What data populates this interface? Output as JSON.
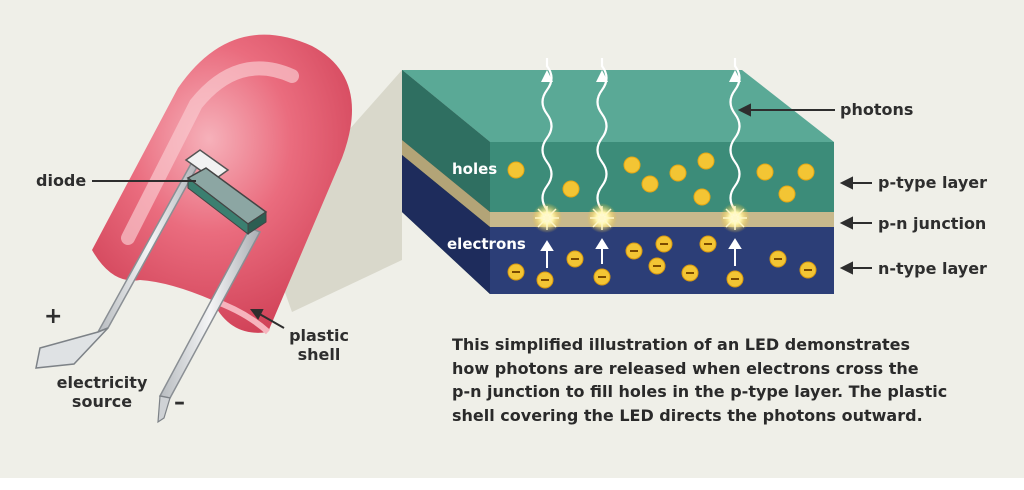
{
  "labels": {
    "diode": "diode",
    "photons": "photons",
    "holes": "holes",
    "electrons": "electrons",
    "p_type_layer": "p-type layer",
    "p_n_junction": "p-n junction",
    "n_type_layer": "n-type layer",
    "plastic_shell": [
      "plastic",
      "shell"
    ],
    "electricity_source": [
      "electricity",
      "source"
    ],
    "plus_sign": "+",
    "minus_sign": "–"
  },
  "caption": [
    "This simplified illustration of an LED demonstrates",
    "how photons are released when electrons cross the",
    "p-n junction to fill holes in the p-type layer. The plastic",
    "shell covering the LED directs the photons outward."
  ],
  "colors": {
    "background": "#efefe8",
    "shell": "#e05d70",
    "shell_light": "#f39aa5",
    "p_layer": "#3c8c79",
    "p_layer_top": "#5aa996",
    "n_layer": "#2c3e77",
    "n_layer_side": "#1e2c5c",
    "junction": "#c8b98c",
    "particle": "#f3c534",
    "lead": "#d9dcde"
  }
}
